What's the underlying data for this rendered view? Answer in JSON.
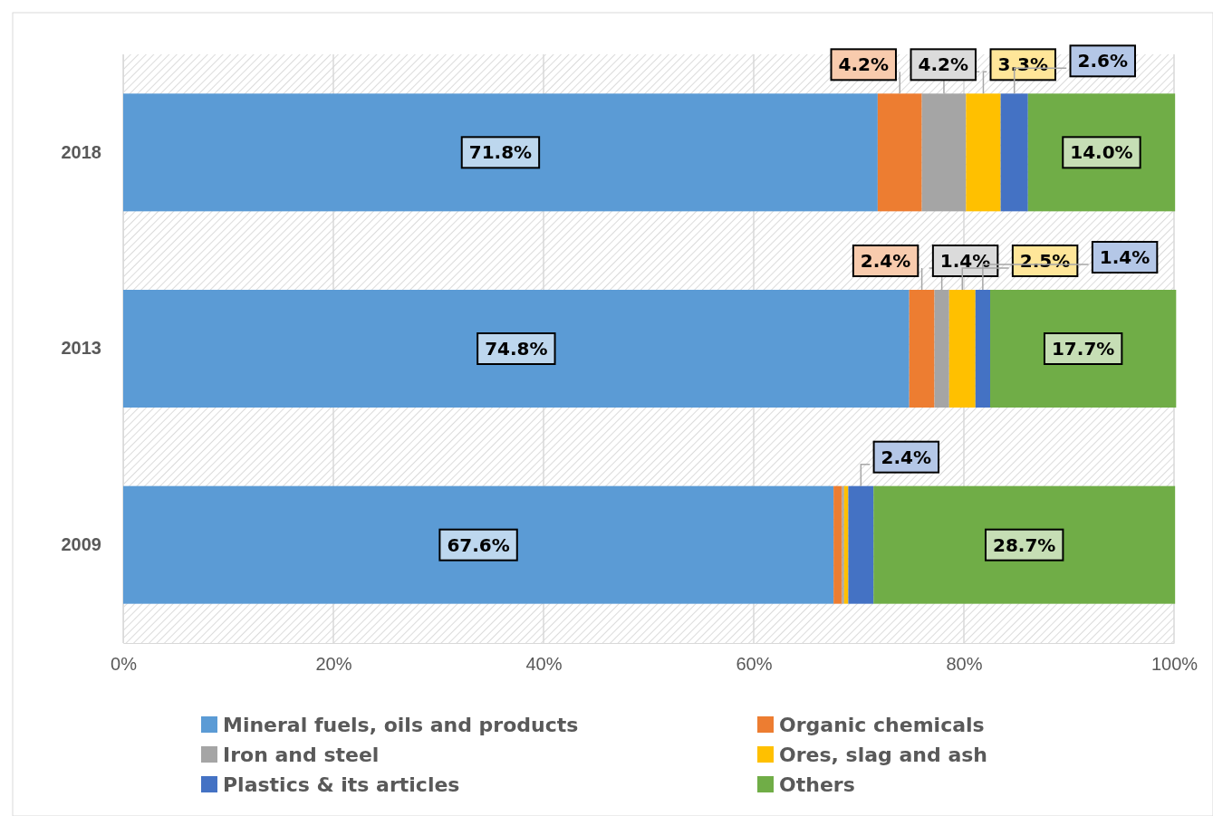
{
  "chart_data": {
    "type": "bar",
    "orientation": "horizontal",
    "stacked": true,
    "categories": [
      "2018",
      "2013",
      "2009"
    ],
    "series": [
      {
        "name": "Mineral fuels, oils and products",
        "color": "#5b9bd5",
        "values": [
          71.8,
          74.8,
          67.6
        ],
        "value_labels": [
          "71.8%",
          "74.8%",
          "67.6%"
        ]
      },
      {
        "name": "Organic chemicals",
        "color": "#ed7d31",
        "values": [
          4.2,
          2.4,
          0.8
        ],
        "value_labels": [
          "4.2%",
          "2.4%",
          null
        ]
      },
      {
        "name": "Iron and steel",
        "color": "#a5a5a5",
        "values": [
          4.2,
          1.4,
          0.2
        ],
        "value_labels": [
          "4.2%",
          "1.4%",
          null
        ]
      },
      {
        "name": "Ores, slag and ash",
        "color": "#ffc000",
        "values": [
          3.3,
          2.5,
          0.4
        ],
        "value_labels": [
          "3.3%",
          "2.5%",
          null
        ]
      },
      {
        "name": "Plastics & its articles",
        "color": "#4472c4",
        "values": [
          2.6,
          1.4,
          2.4
        ],
        "value_labels": [
          "2.6%",
          "1.4%",
          "2.4%"
        ]
      },
      {
        "name": "Others",
        "color": "#70ad47",
        "values": [
          14.0,
          17.7,
          28.7
        ],
        "value_labels": [
          "14.0%",
          "17.7%",
          "28.7%"
        ]
      }
    ],
    "xlim": [
      0,
      100
    ],
    "xticks": [
      {
        "value": 0,
        "label": "0%"
      },
      {
        "value": 20,
        "label": "20%"
      },
      {
        "value": 40,
        "label": "40%"
      },
      {
        "value": 60,
        "label": "60%"
      },
      {
        "value": 80,
        "label": "80%"
      },
      {
        "value": 100,
        "label": "100%"
      }
    ],
    "grid": "x",
    "legend": "bottom"
  }
}
